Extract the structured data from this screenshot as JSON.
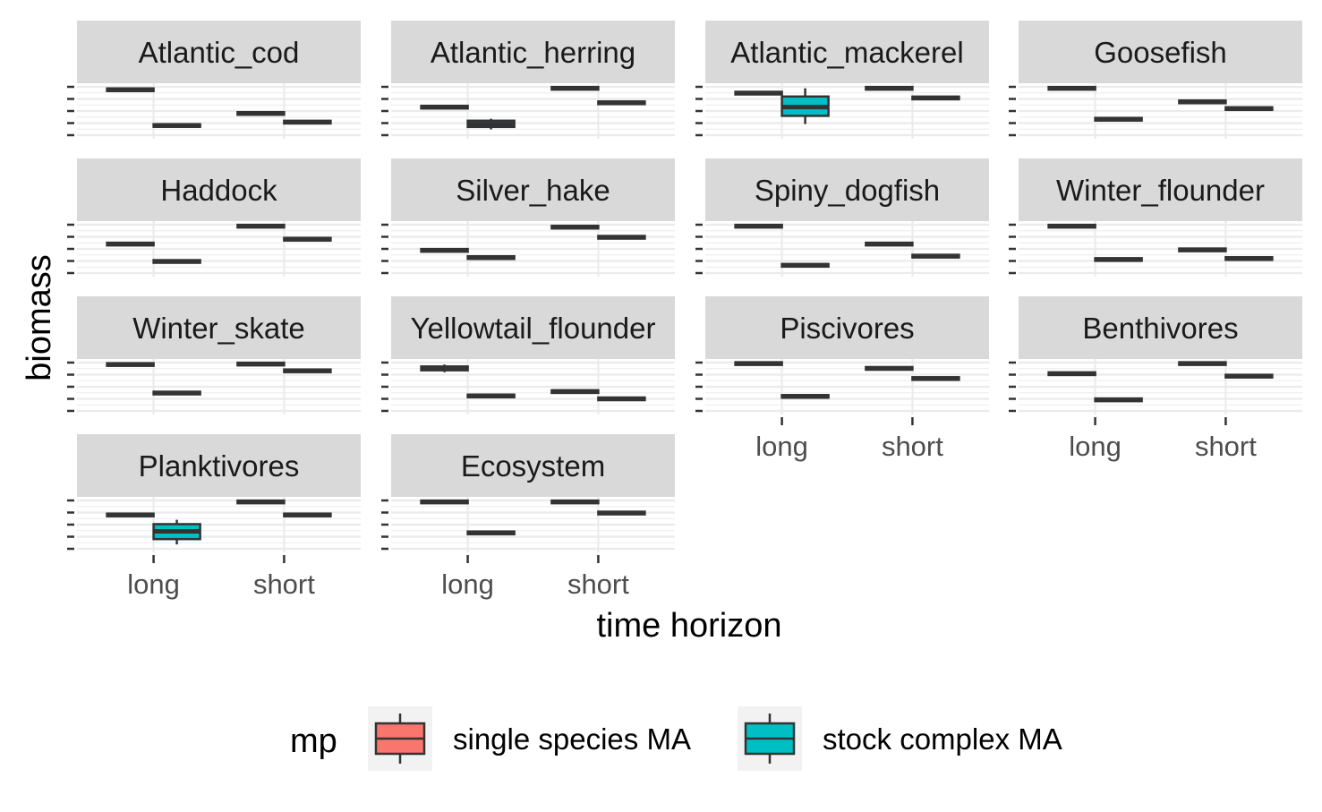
{
  "chart_data": {
    "type": "boxplot",
    "facet_layout": "wrap-4-columns",
    "xlabel": "time horizon",
    "ylabel": "biomass",
    "categories": [
      "long",
      "short"
    ],
    "legend": {
      "title": "mp",
      "position": "bottom",
      "entries": [
        {
          "name": "single species MA",
          "color": "#F8766D"
        },
        {
          "name": "stock complex MA",
          "color": "#00BFC4"
        }
      ]
    },
    "y_ticks_labeled": false,
    "y_range_per_panel": [
      0,
      1
    ],
    "grid": true,
    "panel_background": "#FFFFFF",
    "grid_color": "#EBEBEB",
    "strip_color": "#D9D9D9",
    "box_outline_color": "#333333",
    "panels": [
      {
        "name": "Atlantic_cod",
        "boxes": [
          {
            "x": "long",
            "mp": "single species MA",
            "median": 0.94
          },
          {
            "x": "long",
            "mp": "stock complex MA",
            "median": 0.2
          },
          {
            "x": "short",
            "mp": "single species MA",
            "median": 0.45
          },
          {
            "x": "short",
            "mp": "stock complex MA",
            "median": 0.27
          }
        ]
      },
      {
        "name": "Atlantic_herring",
        "boxes": [
          {
            "x": "long",
            "mp": "single species MA",
            "median": 0.58
          },
          {
            "x": "long",
            "mp": "stock complex MA",
            "median": 0.23,
            "q1": 0.17,
            "q3": 0.3,
            "lo": 0.12,
            "hi": 0.34
          },
          {
            "x": "short",
            "mp": "single species MA",
            "median": 0.97
          },
          {
            "x": "short",
            "mp": "stock complex MA",
            "median": 0.67
          }
        ]
      },
      {
        "name": "Atlantic_mackerel",
        "boxes": [
          {
            "x": "long",
            "mp": "single species MA",
            "median": 0.87
          },
          {
            "x": "long",
            "mp": "stock complex MA",
            "median": 0.58,
            "q1": 0.4,
            "q3": 0.8,
            "lo": 0.23,
            "hi": 0.97
          },
          {
            "x": "short",
            "mp": "single species MA",
            "median": 0.97
          },
          {
            "x": "short",
            "mp": "stock complex MA",
            "median": 0.77
          }
        ]
      },
      {
        "name": "Goosefish",
        "boxes": [
          {
            "x": "long",
            "mp": "single species MA",
            "median": 0.97
          },
          {
            "x": "long",
            "mp": "stock complex MA",
            "median": 0.33
          },
          {
            "x": "short",
            "mp": "single species MA",
            "median": 0.69
          },
          {
            "x": "short",
            "mp": "stock complex MA",
            "median": 0.55
          }
        ]
      },
      {
        "name": "Haddock",
        "boxes": [
          {
            "x": "long",
            "mp": "single species MA",
            "median": 0.6
          },
          {
            "x": "long",
            "mp": "stock complex MA",
            "median": 0.24
          },
          {
            "x": "short",
            "mp": "single species MA",
            "median": 0.97
          },
          {
            "x": "short",
            "mp": "stock complex MA",
            "median": 0.7
          }
        ]
      },
      {
        "name": "Silver_hake",
        "boxes": [
          {
            "x": "long",
            "mp": "single species MA",
            "median": 0.47
          },
          {
            "x": "long",
            "mp": "stock complex MA",
            "median": 0.32
          },
          {
            "x": "short",
            "mp": "single species MA",
            "median": 0.95
          },
          {
            "x": "short",
            "mp": "stock complex MA",
            "median": 0.74
          }
        ]
      },
      {
        "name": "Spiny_dogfish",
        "boxes": [
          {
            "x": "long",
            "mp": "single species MA",
            "median": 0.97
          },
          {
            "x": "long",
            "mp": "stock complex MA",
            "median": 0.16
          },
          {
            "x": "short",
            "mp": "single species MA",
            "median": 0.6
          },
          {
            "x": "short",
            "mp": "stock complex MA",
            "median": 0.35
          }
        ]
      },
      {
        "name": "Winter_flounder",
        "boxes": [
          {
            "x": "long",
            "mp": "single species MA",
            "median": 0.97
          },
          {
            "x": "long",
            "mp": "stock complex MA",
            "median": 0.28
          },
          {
            "x": "short",
            "mp": "single species MA",
            "median": 0.48
          },
          {
            "x": "short",
            "mp": "stock complex MA",
            "median": 0.3
          }
        ]
      },
      {
        "name": "Winter_skate",
        "boxes": [
          {
            "x": "long",
            "mp": "single species MA",
            "median": 0.96
          },
          {
            "x": "long",
            "mp": "stock complex MA",
            "median": 0.37
          },
          {
            "x": "short",
            "mp": "single species MA",
            "median": 0.97
          },
          {
            "x": "short",
            "mp": "stock complex MA",
            "median": 0.83
          }
        ]
      },
      {
        "name": "Yellowtail_flounder",
        "boxes": [
          {
            "x": "long",
            "mp": "single species MA",
            "median": 0.88,
            "q1": 0.84,
            "q3": 0.92,
            "lo": 0.8,
            "hi": 0.96
          },
          {
            "x": "long",
            "mp": "stock complex MA",
            "median": 0.31
          },
          {
            "x": "short",
            "mp": "single species MA",
            "median": 0.4
          },
          {
            "x": "short",
            "mp": "stock complex MA",
            "median": 0.25
          }
        ]
      },
      {
        "name": "Piscivores",
        "boxes": [
          {
            "x": "long",
            "mp": "single species MA",
            "median": 0.98
          },
          {
            "x": "long",
            "mp": "stock complex MA",
            "median": 0.3
          },
          {
            "x": "short",
            "mp": "single species MA",
            "median": 0.88
          },
          {
            "x": "short",
            "mp": "stock complex MA",
            "median": 0.67
          }
        ]
      },
      {
        "name": "Benthivores",
        "boxes": [
          {
            "x": "long",
            "mp": "single species MA",
            "median": 0.77
          },
          {
            "x": "long",
            "mp": "stock complex MA",
            "median": 0.23
          },
          {
            "x": "short",
            "mp": "single species MA",
            "median": 0.98
          },
          {
            "x": "short",
            "mp": "stock complex MA",
            "median": 0.72
          }
        ]
      },
      {
        "name": "Planktivores",
        "boxes": [
          {
            "x": "long",
            "mp": "single species MA",
            "median": 0.7
          },
          {
            "x": "long",
            "mp": "stock complex MA",
            "median": 0.36,
            "q1": 0.2,
            "q3": 0.51,
            "lo": 0.09,
            "hi": 0.6
          },
          {
            "x": "short",
            "mp": "single species MA",
            "median": 0.97
          },
          {
            "x": "short",
            "mp": "stock complex MA",
            "median": 0.7
          }
        ]
      },
      {
        "name": "Ecosystem",
        "boxes": [
          {
            "x": "long",
            "mp": "single species MA",
            "median": 0.97
          },
          {
            "x": "long",
            "mp": "stock complex MA",
            "median": 0.33
          },
          {
            "x": "short",
            "mp": "single species MA",
            "median": 0.97
          },
          {
            "x": "short",
            "mp": "stock complex MA",
            "median": 0.74
          }
        ]
      }
    ]
  }
}
